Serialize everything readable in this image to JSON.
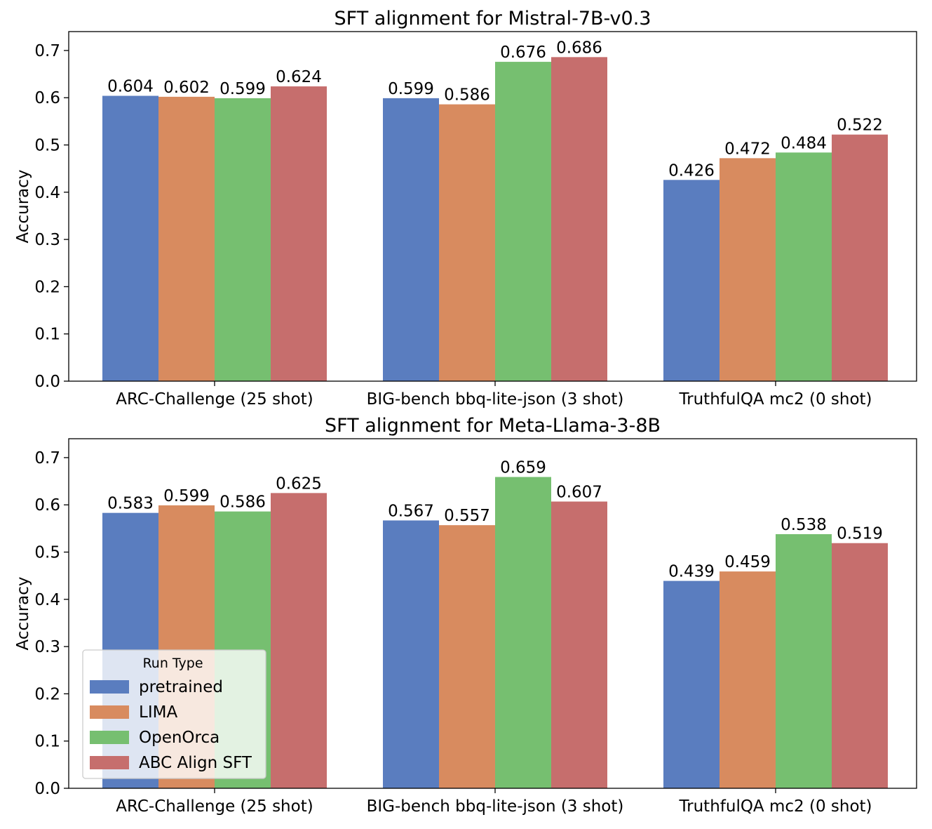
{
  "chart_data": [
    {
      "type": "bar",
      "title": "SFT alignment for Mistral-7B-v0.3",
      "xlabel": "",
      "ylabel": "Accuracy",
      "ylim": [
        0,
        0.74
      ],
      "yticks": [
        "0.0",
        "0.1",
        "0.2",
        "0.3",
        "0.4",
        "0.5",
        "0.6",
        "0.7"
      ],
      "categories": [
        "ARC-Challenge (25 shot)",
        "BIG-bench bbq-lite-json (3 shot)",
        "TruthfulQA mc2 (0 shot)"
      ],
      "series": [
        {
          "name": "pretrained",
          "color": "#5a7dbf",
          "values": [
            0.604,
            0.599,
            0.426
          ],
          "labels": [
            "0.604",
            "0.599",
            "0.426"
          ]
        },
        {
          "name": "LIMA",
          "color": "#d88b5f",
          "values": [
            0.602,
            0.586,
            0.472
          ],
          "labels": [
            "0.602",
            "0.586",
            "0.472"
          ]
        },
        {
          "name": "OpenOrca",
          "color": "#76bf70",
          "values": [
            0.599,
            0.676,
            0.484
          ],
          "labels": [
            "0.599",
            "0.676",
            "0.484"
          ]
        },
        {
          "name": "ABC Align SFT",
          "color": "#c66e6d",
          "values": [
            0.624,
            0.686,
            0.522
          ],
          "labels": [
            "0.624",
            "0.686",
            "0.522"
          ]
        }
      ],
      "legend": null
    },
    {
      "type": "bar",
      "title": "SFT alignment for Meta-Llama-3-8B",
      "xlabel": "",
      "ylabel": "Accuracy",
      "ylim": [
        0,
        0.74
      ],
      "yticks": [
        "0.0",
        "0.1",
        "0.2",
        "0.3",
        "0.4",
        "0.5",
        "0.6",
        "0.7"
      ],
      "categories": [
        "ARC-Challenge (25 shot)",
        "BIG-bench bbq-lite-json (3 shot)",
        "TruthfulQA mc2 (0 shot)"
      ],
      "series": [
        {
          "name": "pretrained",
          "color": "#5a7dbf",
          "values": [
            0.583,
            0.567,
            0.439
          ],
          "labels": [
            "0.583",
            "0.567",
            "0.439"
          ]
        },
        {
          "name": "LIMA",
          "color": "#d88b5f",
          "values": [
            0.599,
            0.557,
            0.459
          ],
          "labels": [
            "0.599",
            "0.557",
            "0.459"
          ]
        },
        {
          "name": "OpenOrca",
          "color": "#76bf70",
          "values": [
            0.586,
            0.659,
            0.538
          ],
          "labels": [
            "0.586",
            "0.659",
            "0.538"
          ]
        },
        {
          "name": "ABC Align SFT",
          "color": "#c66e6d",
          "values": [
            0.625,
            0.607,
            0.519
          ],
          "labels": [
            "0.625",
            "0.607",
            "0.519"
          ]
        }
      ],
      "legend": {
        "title": "Run Type",
        "location": "lower-left",
        "entries": [
          "pretrained",
          "LIMA",
          "OpenOrca",
          "ABC Align SFT"
        ]
      }
    }
  ]
}
